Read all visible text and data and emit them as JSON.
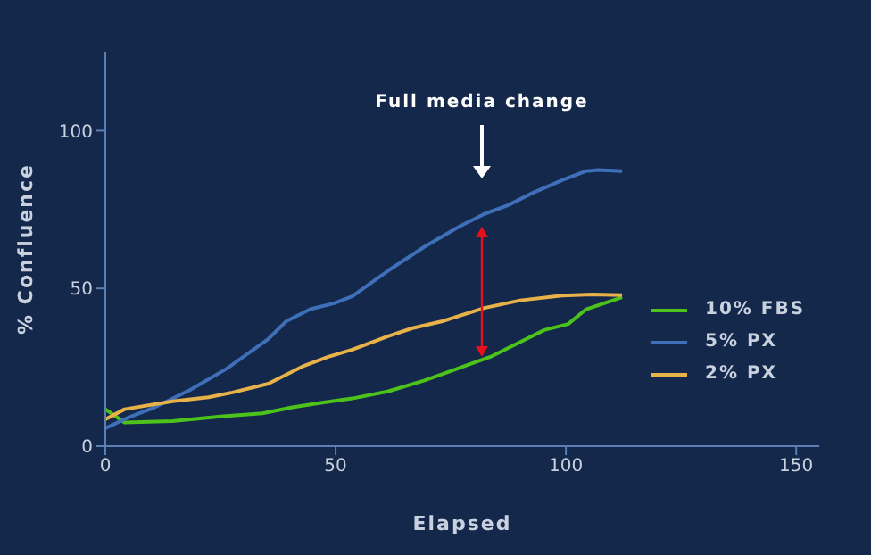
{
  "chart_data": {
    "type": "line",
    "xlabel": "Elapsed",
    "ylabel": "% Confluence",
    "xlim": [
      0,
      155
    ],
    "xticks": [
      0,
      50,
      100,
      150
    ],
    "ylim": [
      0,
      125
    ],
    "yticks": [
      0,
      50,
      100
    ],
    "grid": false,
    "legend": "right",
    "line_style": "solid",
    "marker": "none",
    "annotations": [
      "Full media change"
    ],
    "series": [
      {
        "name": "10% FBS",
        "color": "#4cc21a",
        "x": [
          0,
          4.2,
          14.6,
          25,
          34.1,
          40.6,
          47.1,
          53.6,
          61.5,
          69.3,
          77.1,
          83.6,
          90.1,
          95.3,
          100.5,
          104.4,
          112.2
        ],
        "values": [
          11.7,
          7.5,
          7.9,
          9.4,
          10.4,
          12.3,
          13.8,
          15.1,
          17.4,
          20.8,
          24.9,
          28.3,
          33,
          36.8,
          38.7,
          43.4,
          47.2
        ]
      },
      {
        "name": "5% PX",
        "color": "#3e6fb8",
        "x": [
          0,
          5.5,
          10.7,
          18.5,
          26.3,
          35.4,
          39.3,
          44.5,
          49.7,
          53.6,
          61.5,
          69.3,
          77.1,
          82.3,
          87.5,
          92.7,
          99.2,
          104.4,
          107,
          112.2
        ],
        "values": [
          5.7,
          9.4,
          12.3,
          17.9,
          24.5,
          34,
          39.6,
          43.4,
          45.3,
          47.5,
          55.7,
          63.2,
          69.8,
          73.6,
          76.4,
          80.2,
          84.3,
          87.2,
          87.5,
          87.2
        ]
      },
      {
        "name": "2% PX",
        "color": "#e8b24a",
        "x": [
          0,
          4.2,
          14.6,
          22.4,
          27.6,
          35.4,
          43.2,
          48.4,
          53.6,
          61.5,
          66.7,
          73.2,
          82.3,
          90.1,
          99.2,
          105.7,
          112.2
        ],
        "values": [
          8.5,
          11.7,
          14.2,
          15.5,
          17,
          19.8,
          25.5,
          28.3,
          30.6,
          34.9,
          37.4,
          39.6,
          43.8,
          46.2,
          47.7,
          48.1,
          47.9
        ]
      }
    ]
  }
}
